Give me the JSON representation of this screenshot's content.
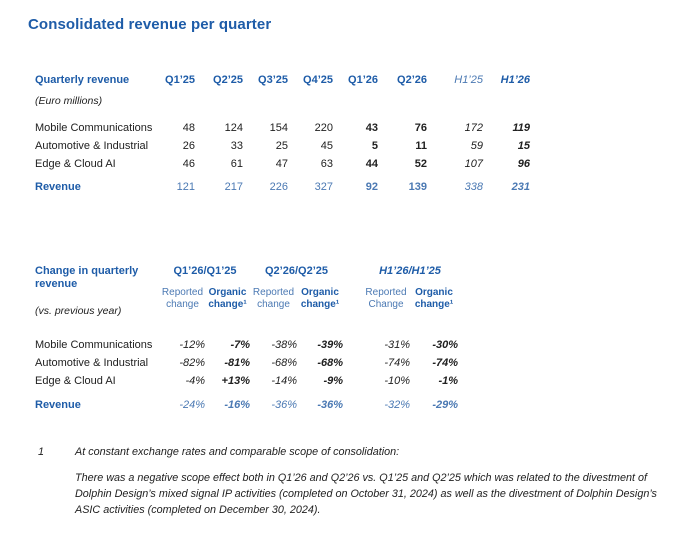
{
  "page": {
    "title": "Consolidated revenue per quarter"
  },
  "table1": {
    "name": "Quarterly revenue",
    "unit": "(Euro millions)",
    "columns": [
      "Q1’25",
      "Q2’25",
      "Q3’25",
      "Q4’25",
      "Q1’26",
      "Q2’26",
      "H1’25",
      "H1’26"
    ],
    "rows": [
      {
        "label": "Mobile Communications",
        "values": [
          "48",
          "124",
          "154",
          "220",
          "43",
          "76",
          "172",
          "119"
        ]
      },
      {
        "label": "Automotive & Industrial",
        "values": [
          "26",
          "33",
          "25",
          "45",
          "5",
          "11",
          "59",
          "15"
        ]
      },
      {
        "label": "Edge & Cloud AI",
        "values": [
          "46",
          "61",
          "47",
          "63",
          "44",
          "52",
          "107",
          "96"
        ]
      }
    ],
    "total": {
      "label": "Revenue",
      "values": [
        "121",
        "217",
        "226",
        "327",
        "92",
        "139",
        "338",
        "231"
      ]
    }
  },
  "table2": {
    "name": "Change in quarterly revenue",
    "unit": "(vs. previous year)",
    "groups": [
      {
        "label": "Q1’26/Q1’25"
      },
      {
        "label": "Q2’26/Q2’25"
      },
      {
        "label": "H1’26/H1’25"
      }
    ],
    "sub_headers": [
      {
        "line1": "Reported",
        "line2": "change"
      },
      {
        "line1": "Organic",
        "line2": "change¹"
      },
      {
        "line1": "Reported",
        "line2": "change"
      },
      {
        "line1": "Organic",
        "line2": "change¹"
      },
      {
        "line1": "Reported",
        "line2": "Change"
      },
      {
        "line1": "Organic",
        "line2": "change¹"
      }
    ],
    "rows": [
      {
        "label": "Mobile Communications",
        "values": [
          "-12%",
          "-7%",
          "-38%",
          "-39%",
          "-31%",
          "-30%"
        ]
      },
      {
        "label": "Automotive & Industrial",
        "values": [
          "-82%",
          "-81%",
          "-68%",
          "-68%",
          "-74%",
          "-74%"
        ]
      },
      {
        "label": "Edge & Cloud AI",
        "values": [
          "-4%",
          "+13%",
          "-14%",
          "-9%",
          "-10%",
          "-1%"
        ]
      }
    ],
    "total": {
      "label": "Revenue",
      "values": [
        "-24%",
        "-16%",
        "-36%",
        "-36%",
        "-32%",
        "-29%"
      ]
    }
  },
  "footnote": {
    "marker": "1",
    "intro": "At constant exchange rates and comparable scope of consolidation:",
    "paragraph": "There was a negative scope effect both in Q1’26 and Q2’26 vs. Q1’25 and Q2’25 which was related to the divestment of Dolphin Design’s mixed signal IP activities (completed on October 31, 2024) as well as the divestment of Dolphin Design’s ASIC activities (completed on December 30, 2024)."
  }
}
